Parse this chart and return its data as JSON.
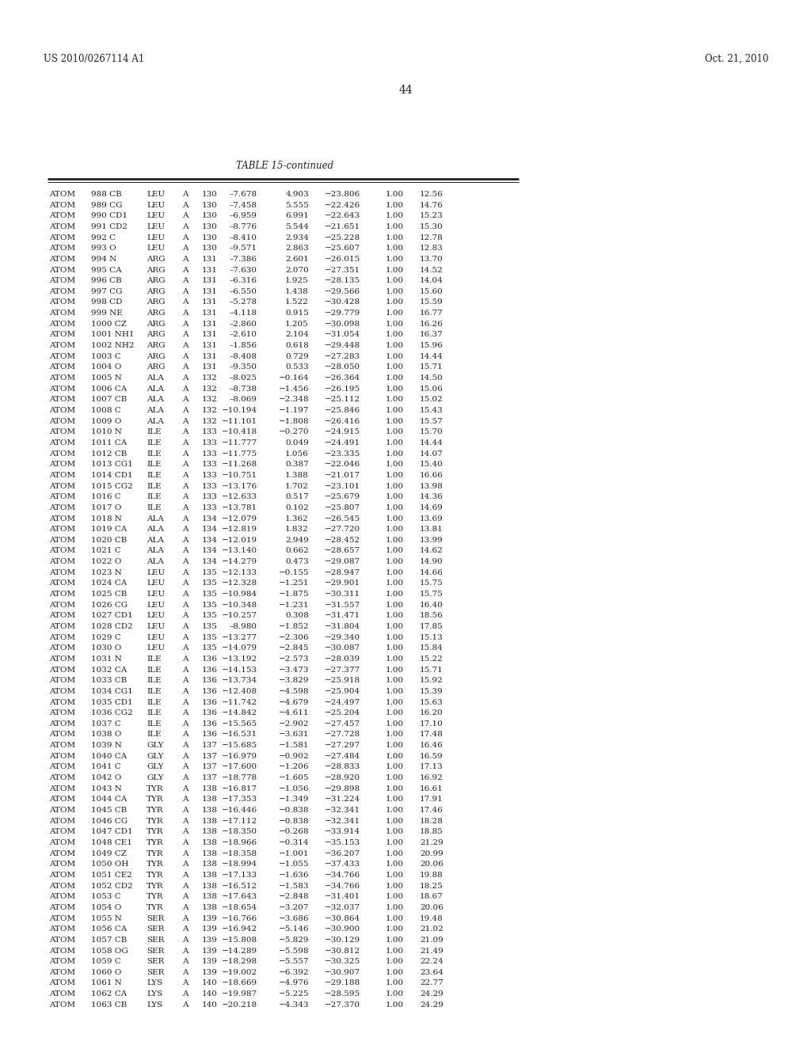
{
  "header_left": "US 2010/0267114 A1",
  "header_right": "Oct. 21, 2010",
  "page_number": "44",
  "table_title": "TABLE 15-continued",
  "rows": [
    [
      "ATOM",
      "988 CB",
      "LEU",
      "A",
      "130",
      "–7.678",
      "4.903",
      "−23.806",
      "1.00",
      "12.56"
    ],
    [
      "ATOM",
      "989 CG",
      "LEU",
      "A",
      "130",
      "–7.458",
      "5.555",
      "−22.426",
      "1.00",
      "14.76"
    ],
    [
      "ATOM",
      "990 CD1",
      "LEU",
      "A",
      "130",
      "–6.959",
      "6.991",
      "−22.643",
      "1.00",
      "15.23"
    ],
    [
      "ATOM",
      "991 CD2",
      "LEU",
      "A",
      "130",
      "–8.776",
      "5.544",
      "−21.651",
      "1.00",
      "15.30"
    ],
    [
      "ATOM",
      "992 C",
      "LEU",
      "A",
      "130",
      "–8.410",
      "2.934",
      "−25.228",
      "1.00",
      "12.78"
    ],
    [
      "ATOM",
      "993 O",
      "LEU",
      "A",
      "130",
      "–9.571",
      "2.863",
      "−25.607",
      "1.00",
      "12.83"
    ],
    [
      "ATOM",
      "994 N",
      "ARG",
      "A",
      "131",
      "–7.386",
      "2.601",
      "−26.015",
      "1.00",
      "13.70"
    ],
    [
      "ATOM",
      "995 CA",
      "ARG",
      "A",
      "131",
      "–7.630",
      "2.070",
      "−27.351",
      "1.00",
      "14.52"
    ],
    [
      "ATOM",
      "996 CB",
      "ARG",
      "A",
      "131",
      "–6.316",
      "1.925",
      "−28.135",
      "1.00",
      "14.04"
    ],
    [
      "ATOM",
      "997 CG",
      "ARG",
      "A",
      "131",
      "–6.550",
      "1.438",
      "−29.566",
      "1.00",
      "15.60"
    ],
    [
      "ATOM",
      "998 CD",
      "ARG",
      "A",
      "131",
      "–5.278",
      "1.522",
      "−30.428",
      "1.00",
      "15.59"
    ],
    [
      "ATOM",
      "999 NE",
      "ARG",
      "A",
      "131",
      "–4.118",
      "0.915",
      "−29.779",
      "1.00",
      "16.77"
    ],
    [
      "ATOM",
      "1000 CZ",
      "ARG",
      "A",
      "131",
      "–2.860",
      "1.205",
      "−30.098",
      "1.00",
      "16.26"
    ],
    [
      "ATOM",
      "1001 NH1",
      "ARG",
      "A",
      "131",
      "–2.610",
      "2.104",
      "−31.054",
      "1.00",
      "16.37"
    ],
    [
      "ATOM",
      "1002 NH2",
      "ARG",
      "A",
      "131",
      "–1.856",
      "0.618",
      "−29.448",
      "1.00",
      "15.96"
    ],
    [
      "ATOM",
      "1003 C",
      "ARG",
      "A",
      "131",
      "–8.408",
      "0.729",
      "−27.283",
      "1.00",
      "14.44"
    ],
    [
      "ATOM",
      "1004 O",
      "ARG",
      "A",
      "131",
      "–9.350",
      "0.533",
      "−28.050",
      "1.00",
      "15.71"
    ],
    [
      "ATOM",
      "1005 N",
      "ALA",
      "A",
      "132",
      "–8.025",
      "−0.164",
      "−26.364",
      "1.00",
      "14.50"
    ],
    [
      "ATOM",
      "1006 CA",
      "ALA",
      "A",
      "132",
      "–8.738",
      "−1.456",
      "−26.195",
      "1.00",
      "15.06"
    ],
    [
      "ATOM",
      "1007 CB",
      "ALA",
      "A",
      "132",
      "–8.069",
      "−2.348",
      "−25.112",
      "1.00",
      "15.02"
    ],
    [
      "ATOM",
      "1008 C",
      "ALA",
      "A",
      "132",
      "−10.194",
      "−1.197",
      "−25.846",
      "1.00",
      "15.43"
    ],
    [
      "ATOM",
      "1009 O",
      "ALA",
      "A",
      "132",
      "−11.101",
      "−1.808",
      "−26.416",
      "1.00",
      "15.57"
    ],
    [
      "ATOM",
      "1010 N",
      "ILE",
      "A",
      "133",
      "−10.418",
      "−0.270",
      "−24.915",
      "1.00",
      "15.70"
    ],
    [
      "ATOM",
      "1011 CA",
      "ILE",
      "A",
      "133",
      "−11.777",
      "0.049",
      "−24.491",
      "1.00",
      "14.44"
    ],
    [
      "ATOM",
      "1012 CB",
      "ILE",
      "A",
      "133",
      "−11.775",
      "1.056",
      "−23.335",
      "1.00",
      "14.07"
    ],
    [
      "ATOM",
      "1013 CG1",
      "ILE",
      "A",
      "133",
      "−11.268",
      "0.387",
      "−22.046",
      "1.00",
      "15.40"
    ],
    [
      "ATOM",
      "1014 CD1",
      "ILE",
      "A",
      "133",
      "−10.751",
      "1.388",
      "−21.017",
      "1.00",
      "16.66"
    ],
    [
      "ATOM",
      "1015 CG2",
      "ILE",
      "A",
      "133",
      "−13.176",
      "1.702",
      "−23.101",
      "1.00",
      "13.98"
    ],
    [
      "ATOM",
      "1016 C",
      "ILE",
      "A",
      "133",
      "−12.633",
      "0.517",
      "−25.679",
      "1.00",
      "14.36"
    ],
    [
      "ATOM",
      "1017 O",
      "ILE",
      "A",
      "133",
      "−13.781",
      "0.102",
      "−25.807",
      "1.00",
      "14.69"
    ],
    [
      "ATOM",
      "1018 N",
      "ALA",
      "A",
      "134",
      "−12.079",
      "1.362",
      "−26.545",
      "1.00",
      "13.69"
    ],
    [
      "ATOM",
      "1019 CA",
      "ALA",
      "A",
      "134",
      "−12.819",
      "1.832",
      "−27.720",
      "1.00",
      "13.81"
    ],
    [
      "ATOM",
      "1020 CB",
      "ALA",
      "A",
      "134",
      "−12.019",
      "2.949",
      "−28.452",
      "1.00",
      "13.99"
    ],
    [
      "ATOM",
      "1021 C",
      "ALA",
      "A",
      "134",
      "−13.140",
      "0.662",
      "−28.657",
      "1.00",
      "14.62"
    ],
    [
      "ATOM",
      "1022 O",
      "ALA",
      "A",
      "134",
      "−14.279",
      "0.473",
      "−29.087",
      "1.00",
      "14.90"
    ],
    [
      "ATOM",
      "1023 N",
      "LEU",
      "A",
      "135",
      "−12.133",
      "−0.155",
      "−28.947",
      "1.00",
      "14.66"
    ],
    [
      "ATOM",
      "1024 CA",
      "LEU",
      "A",
      "135",
      "−12.328",
      "−1.251",
      "−29.901",
      "1.00",
      "15.75"
    ],
    [
      "ATOM",
      "1025 CB",
      "LEU",
      "A",
      "135",
      "−10.984",
      "−1.875",
      "−30.311",
      "1.00",
      "15.75"
    ],
    [
      "ATOM",
      "1026 CG",
      "LEU",
      "A",
      "135",
      "−10.348",
      "−1.231",
      "−31.557",
      "1.00",
      "16.40"
    ],
    [
      "ATOM",
      "1027 CD1",
      "LEU",
      "A",
      "135",
      "−10.257",
      "0.308",
      "−31.471",
      "1.00",
      "18.56"
    ],
    [
      "ATOM",
      "1028 CD2",
      "LEU",
      "A",
      "135",
      "–8.980",
      "−1.852",
      "−31.804",
      "1.00",
      "17.85"
    ],
    [
      "ATOM",
      "1029 C",
      "LEU",
      "A",
      "135",
      "−13.277",
      "−2.306",
      "−29.340",
      "1.00",
      "15.13"
    ],
    [
      "ATOM",
      "1030 O",
      "LEU",
      "A",
      "135",
      "−14.079",
      "−2.845",
      "−30.087",
      "1.00",
      "15.84"
    ],
    [
      "ATOM",
      "1031 N",
      "ILE",
      "A",
      "136",
      "−13.192",
      "−2.573",
      "−28.039",
      "1.00",
      "15.22"
    ],
    [
      "ATOM",
      "1032 CA",
      "ILE",
      "A",
      "136",
      "−14.153",
      "−3.473",
      "−27.377",
      "1.00",
      "15.71"
    ],
    [
      "ATOM",
      "1033 CB",
      "ILE",
      "A",
      "136",
      "−13.734",
      "−3.829",
      "−25.918",
      "1.00",
      "15.92"
    ],
    [
      "ATOM",
      "1034 CG1",
      "ILE",
      "A",
      "136",
      "−12.408",
      "−4.598",
      "−25.904",
      "1.00",
      "15.39"
    ],
    [
      "ATOM",
      "1035 CD1",
      "ILE",
      "A",
      "136",
      "−11.742",
      "−4.679",
      "−24.497",
      "1.00",
      "15.63"
    ],
    [
      "ATOM",
      "1036 CG2",
      "ILE",
      "A",
      "136",
      "−14.842",
      "−4.611",
      "−25.204",
      "1.00",
      "16.20"
    ],
    [
      "ATOM",
      "1037 C",
      "ILE",
      "A",
      "136",
      "−15.565",
      "−2.902",
      "−27.457",
      "1.00",
      "17.10"
    ],
    [
      "ATOM",
      "1038 O",
      "ILE",
      "A",
      "136",
      "−16.531",
      "−3.631",
      "−27.728",
      "1.00",
      "17.48"
    ],
    [
      "ATOM",
      "1039 N",
      "GLY",
      "A",
      "137",
      "−15.685",
      "−1.581",
      "−27.297",
      "1.00",
      "16.46"
    ],
    [
      "ATOM",
      "1040 CA",
      "GLY",
      "A",
      "137",
      "−16.979",
      "−0.902",
      "−27.484",
      "1.00",
      "16.59"
    ],
    [
      "ATOM",
      "1041 C",
      "GLY",
      "A",
      "137",
      "−17.600",
      "−1.206",
      "−28.833",
      "1.00",
      "17.13"
    ],
    [
      "ATOM",
      "1042 O",
      "GLY",
      "A",
      "137",
      "−18.778",
      "−1.605",
      "−28.920",
      "1.00",
      "16.92"
    ],
    [
      "ATOM",
      "1043 N",
      "TYR",
      "A",
      "138",
      "−16.817",
      "−1.056",
      "−29.898",
      "1.00",
      "16.61"
    ],
    [
      "ATOM",
      "1044 CA",
      "TYR",
      "A",
      "138",
      "−17.353",
      "−1.349",
      "−31.224",
      "1.00",
      "17.91"
    ],
    [
      "ATOM",
      "1045 CB",
      "TYR",
      "A",
      "138",
      "−16.446",
      "−0.838",
      "−32.341",
      "1.00",
      "17.46"
    ],
    [
      "ATOM",
      "1046 CG",
      "TYR",
      "A",
      "138",
      "−17.112",
      "−0.838",
      "−32.341",
      "1.00",
      "18.28"
    ],
    [
      "ATOM",
      "1047 CD1",
      "TYR",
      "A",
      "138",
      "−18.350",
      "−0.268",
      "−33.914",
      "1.00",
      "18.85"
    ],
    [
      "ATOM",
      "1048 CE1",
      "TYR",
      "A",
      "138",
      "−18.966",
      "−0.314",
      "−35.153",
      "1.00",
      "21.29"
    ],
    [
      "ATOM",
      "1049 CZ",
      "TYR",
      "A",
      "138",
      "−18.358",
      "−1.001",
      "−36.207",
      "1.00",
      "20.99"
    ],
    [
      "ATOM",
      "1050 OH",
      "TYR",
      "A",
      "138",
      "−18.994",
      "−1.055",
      "−37.433",
      "1.00",
      "20.06"
    ],
    [
      "ATOM",
      "1051 CE2",
      "TYR",
      "A",
      "138",
      "−17.133",
      "−1.636",
      "−34.766",
      "1.00",
      "19.88"
    ],
    [
      "ATOM",
      "1052 CD2",
      "TYR",
      "A",
      "138",
      "−16.512",
      "−1.583",
      "−34.766",
      "1.00",
      "18.25"
    ],
    [
      "ATOM",
      "1053 C",
      "TYR",
      "A",
      "138",
      "−17.643",
      "−2.848",
      "−31.401",
      "1.00",
      "18.67"
    ],
    [
      "ATOM",
      "1054 O",
      "TYR",
      "A",
      "138",
      "−18.654",
      "−3.207",
      "−32.037",
      "1.00",
      "20.06"
    ],
    [
      "ATOM",
      "1055 N",
      "SER",
      "A",
      "139",
      "−16.766",
      "−3.686",
      "−30.864",
      "1.00",
      "19.48"
    ],
    [
      "ATOM",
      "1056 CA",
      "SER",
      "A",
      "139",
      "−16.942",
      "−5.146",
      "−30.900",
      "1.00",
      "21.02"
    ],
    [
      "ATOM",
      "1057 CB",
      "SER",
      "A",
      "139",
      "−15.808",
      "−5.829",
      "−30.129",
      "1.00",
      "21.09"
    ],
    [
      "ATOM",
      "1058 OG",
      "SER",
      "A",
      "139",
      "−14.289",
      "−5.598",
      "−30.812",
      "1.00",
      "21.49"
    ],
    [
      "ATOM",
      "1059 C",
      "SER",
      "A",
      "139",
      "−18.298",
      "−5.557",
      "−30.325",
      "1.00",
      "22.24"
    ],
    [
      "ATOM",
      "1060 O",
      "SER",
      "A",
      "139",
      "−19.002",
      "−6.392",
      "−30.907",
      "1.00",
      "23.64"
    ],
    [
      "ATOM",
      "1061 N",
      "LYS",
      "A",
      "140",
      "−18.669",
      "−4.976",
      "−29.188",
      "1.00",
      "22.77"
    ],
    [
      "ATOM",
      "1062 CA",
      "LYS",
      "A",
      "140",
      "−19.987",
      "−5.225",
      "−28.595",
      "1.00",
      "24.29"
    ],
    [
      "ATOM",
      "1063 CB",
      "LYS",
      "A",
      "140",
      "−20.218",
      "−4.343",
      "−27.370",
      "1.00",
      "24.29"
    ]
  ],
  "background_color": "#ffffff",
  "text_color": "#231f20",
  "line_color": "#231f20",
  "font_size": 7.5,
  "title_font_size": 8.5,
  "header_font_size": 8.5,
  "page_num_font_size": 10.0
}
